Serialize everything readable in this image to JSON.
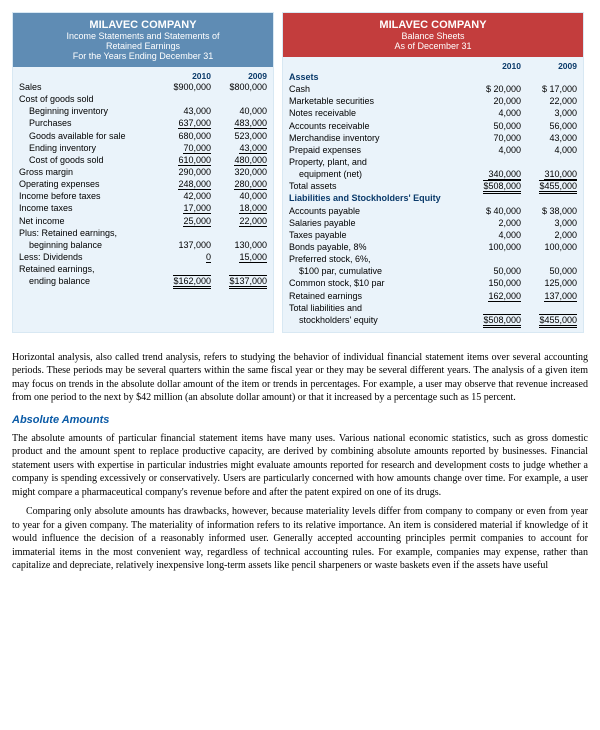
{
  "left": {
    "header_bg": "#5f8cb4",
    "company": "MILAVEC COMPANY",
    "sub1": "Income Statements and Statements of",
    "sub2": "Retained Earnings",
    "sub3": "For the Years Ending December 31",
    "col1": "2010",
    "col2": "2009",
    "rows": {
      "sales": {
        "l": "Sales",
        "a": "$900,000",
        "b": "$800,000"
      },
      "cogs": {
        "l": "Cost of goods sold"
      },
      "beginv": {
        "l": "Beginning inventory",
        "a": "43,000",
        "b": "40,000"
      },
      "purch": {
        "l": "Purchases",
        "a": "637,000",
        "b": "483,000"
      },
      "gafs": {
        "l": "Goods available for sale",
        "a": "680,000",
        "b": "523,000"
      },
      "endinv": {
        "l": "Ending inventory",
        "a": "70,000",
        "b": "43,000"
      },
      "cogs2": {
        "l": "Cost of goods sold",
        "a": "610,000",
        "b": "480,000"
      },
      "gross": {
        "l": "Gross margin",
        "a": "290,000",
        "b": "320,000"
      },
      "opex": {
        "l": "Operating expenses",
        "a": "248,000",
        "b": "280,000"
      },
      "ibt": {
        "l": "Income before taxes",
        "a": "42,000",
        "b": "40,000"
      },
      "tax": {
        "l": "Income taxes",
        "a": "17,000",
        "b": "18,000"
      },
      "ni": {
        "l": "Net income",
        "a": "25,000",
        "b": "22,000"
      },
      "plusre": {
        "l": "Plus: Retained earnings,"
      },
      "begbal": {
        "l": "beginning balance",
        "a": "137,000",
        "b": "130,000"
      },
      "div": {
        "l": "Less: Dividends",
        "a": "0",
        "b": "15,000"
      },
      "reend": {
        "l": "Retained earnings,"
      },
      "endbal": {
        "l": "ending balance",
        "a": "$162,000",
        "b": "$137,000"
      }
    }
  },
  "right": {
    "header_bg": "#c33d3d",
    "company": "MILAVEC COMPANY",
    "sub1": "Balance Sheets",
    "sub2": "As of December 31",
    "col1": "2010",
    "col2": "2009",
    "rows": {
      "assets_h": {
        "l": "Assets"
      },
      "cash": {
        "l": "Cash",
        "a": "$ 20,000",
        "b": "$ 17,000"
      },
      "mkt": {
        "l": "Marketable securities",
        "a": "20,000",
        "b": "22,000"
      },
      "notes": {
        "l": "Notes receivable",
        "a": "4,000",
        "b": "3,000"
      },
      "ar": {
        "l": "Accounts receivable",
        "a": "50,000",
        "b": "56,000"
      },
      "merch": {
        "l": "Merchandise inventory",
        "a": "70,000",
        "b": "43,000"
      },
      "prepaid": {
        "l": "Prepaid expenses",
        "a": "4,000",
        "b": "4,000"
      },
      "ppe1": {
        "l": "Property, plant, and"
      },
      "ppe2": {
        "l": "equipment (net)",
        "a": "340,000",
        "b": "310,000"
      },
      "ta": {
        "l": "Total assets",
        "a": "$508,000",
        "b": "$455,000"
      },
      "liab_h": {
        "l": "Liabilities and Stockholders' Equity"
      },
      "ap": {
        "l": "Accounts payable",
        "a": "$ 40,000",
        "b": "$ 38,000"
      },
      "sal": {
        "l": "Salaries payable",
        "a": "2,000",
        "b": "3,000"
      },
      "taxp": {
        "l": "Taxes payable",
        "a": "4,000",
        "b": "2,000"
      },
      "bonds": {
        "l": "Bonds payable, 8%",
        "a": "100,000",
        "b": "100,000"
      },
      "pref1": {
        "l": "Preferred stock, 6%,"
      },
      "pref2": {
        "l": "$100 par, cumulative",
        "a": "50,000",
        "b": "50,000"
      },
      "common": {
        "l": "Common stock, $10 par",
        "a": "150,000",
        "b": "125,000"
      },
      "re": {
        "l": "Retained earnings",
        "a": "162,000",
        "b": "137,000"
      },
      "tlse1": {
        "l": "Total liabilities and"
      },
      "tlse2": {
        "l": "stockholders' equity",
        "a": "$508,000",
        "b": "$455,000"
      }
    }
  },
  "body": {
    "p1": "Horizontal analysis, also called trend analysis, refers to studying the behavior of individual financial statement items over several accounting periods. These periods may be several quarters within the same fiscal year or they may be several different years. The analysis of a given item may focus on trends in the absolute dollar amount of the item or trends in percentages. For example, a user may observe that revenue increased from one period to the next by $42 million (an absolute dollar amount) or that it increased by a percentage such as 15 percent.",
    "h1": "Absolute Amounts",
    "p2": "The absolute amounts of particular financial statement items have many uses. Various national economic statistics, such as gross domestic product and the amount spent to replace productive capacity, are derived by combining absolute amounts reported by businesses. Financial statement users with expertise in particular industries might evaluate amounts reported for research and development costs to judge whether a company is spending excessively or conservatively. Users are particularly concerned with how amounts change over time. For example, a user might compare a pharmaceutical company's revenue before and after the patent expired on one of its drugs.",
    "p3": "Comparing only absolute amounts has drawbacks, however, because materiality levels differ from company to company or even from year to year for a given company. The materiality of information refers to its relative importance. An item is considered material if knowledge of it would influence the decision of a reasonably informed user. Generally accepted accounting principles permit companies to account for immaterial items in the most convenient way, regardless of technical accounting rules. For example, companies may expense, rather than capitalize and depreciate, relatively inexpensive long-term assets like pencil sharpeners or waste baskets even if the assets have useful"
  }
}
